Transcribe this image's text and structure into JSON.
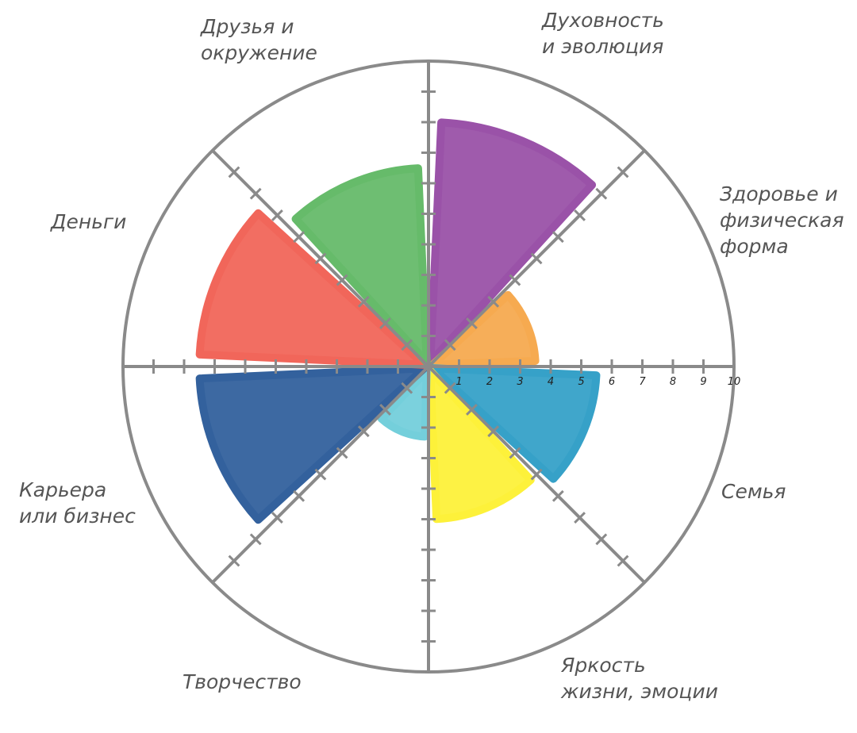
{
  "chart_data": {
    "type": "radial-wheel",
    "scale": {
      "min": 0,
      "max": 10,
      "tick_labels": [
        "1",
        "2",
        "3",
        "4",
        "5",
        "6",
        "7",
        "8",
        "9",
        "10"
      ]
    },
    "grid": true,
    "segments": [
      {
        "label_lines": [
          "Духовность",
          "и эволюция"
        ],
        "value": 8,
        "color": "#9a52a8"
      },
      {
        "label_lines": [
          "Здоровье и",
          "физическая",
          "форма"
        ],
        "value": 3.5,
        "color": "#f6aa50"
      },
      {
        "label_lines": [
          "Семья"
        ],
        "value": 5.5,
        "color": "#36a1c8"
      },
      {
        "label_lines": [
          "Яркость",
          "жизни, эмоции"
        ],
        "value": 5,
        "color": "#fdf13a"
      },
      {
        "label_lines": [
          "Творчество"
        ],
        "value": 2.3,
        "color": "#74cfdb"
      },
      {
        "label_lines": [
          "Карьера",
          "или бизнес"
        ],
        "value": 7.5,
        "color": "#33619d"
      },
      {
        "label_lines": [
          "Деньги"
        ],
        "value": 7.5,
        "color": "#f1665a"
      },
      {
        "label_lines": [
          "Друзья и",
          "окружение"
        ],
        "value": 6.5,
        "color": "#66bb6a"
      }
    ]
  }
}
